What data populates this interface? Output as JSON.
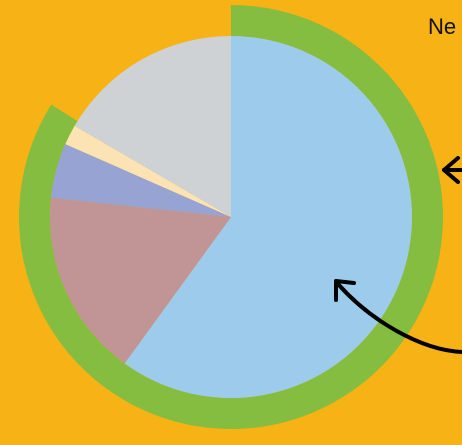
{
  "corner_text": "Ne",
  "colors": {
    "background": "#F7B216",
    "ring": "#84BD3F",
    "arrow": "#000000"
  },
  "chart_data": {
    "type": "pie",
    "title": "",
    "start_angle_deg": 0,
    "direction": "clockwise",
    "slices": [
      {
        "label": "",
        "value": 60.0,
        "color": "#9CCBEB"
      },
      {
        "label": "",
        "value": 16.7,
        "color": "#C19496"
      },
      {
        "label": "",
        "value": 4.9,
        "color": "#96A3D3"
      },
      {
        "label": "",
        "value": 1.8,
        "color": "#FBE3B3"
      },
      {
        "label": "",
        "value": 16.6,
        "color": "#CED2D5"
      }
    ],
    "highlight_ring": {
      "color": "#84BD3F",
      "from_deg": 0,
      "to_deg": 302
    }
  }
}
